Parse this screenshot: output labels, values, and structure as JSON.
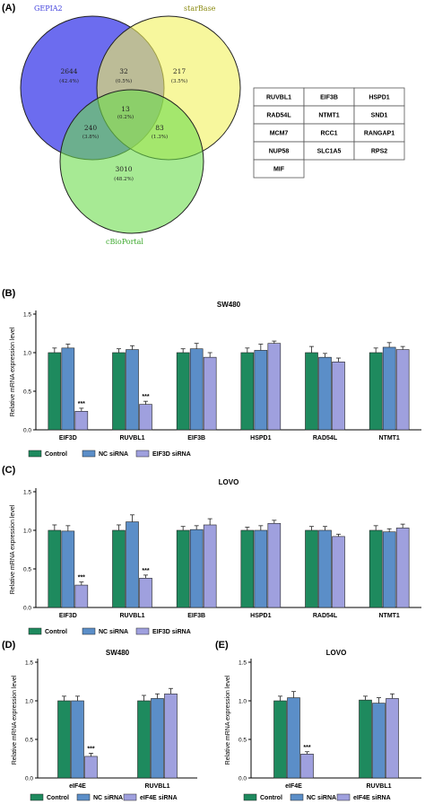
{
  "panels": {
    "A": "(A)",
    "B": "(B)",
    "C": "(C)",
    "D": "(D)",
    "E": "(E)"
  },
  "venn": {
    "sets": [
      "GEPIA2",
      "starBase",
      "cBioPortal"
    ],
    "colors": {
      "GEPIA2": "#6464ee",
      "starBase": "#f2f25c",
      "cBioPortal": "#6cdc4c"
    },
    "regions": [
      {
        "id": "gepia-only",
        "count": "2644",
        "pct": "(42.4%)"
      },
      {
        "id": "gepia-starbase",
        "count": "32",
        "pct": "(0.5%)"
      },
      {
        "id": "starbase-only",
        "count": "217",
        "pct": "(3.5%)"
      },
      {
        "id": "all-three",
        "count": "13",
        "pct": "(0.2%)"
      },
      {
        "id": "gepia-cbio",
        "count": "240",
        "pct": "(3.8%)"
      },
      {
        "id": "starbase-cbio",
        "count": "83",
        "pct": "(1.3%)"
      },
      {
        "id": "cbio-only",
        "count": "3010",
        "pct": "(48.2%)"
      }
    ]
  },
  "gene_table": [
    [
      "RUVBL1",
      "EIF3B",
      "HSPD1"
    ],
    [
      "RAD54L",
      "NTMT1",
      "SND1"
    ],
    [
      "MCM7",
      "RCC1",
      "RANGAP1"
    ],
    [
      "NUP58",
      "SLC1A5",
      "RPS2"
    ],
    [
      "MIF",
      "",
      ""
    ]
  ],
  "chart_data": [
    {
      "panel": "B",
      "type": "bar",
      "title": "SW480",
      "ylabel": "Relative mRNA expression level",
      "ylim": [
        0,
        1.5
      ],
      "yticks": [
        "0.0",
        "0.5",
        "1.0",
        "1.5"
      ],
      "categories": [
        "EIF3D",
        "RUVBL1",
        "EIF3B",
        "HSPD1",
        "RAD54L",
        "NTMT1"
      ],
      "series": [
        {
          "name": "Control",
          "color": "#1e8a5e",
          "values": [
            1.0,
            1.0,
            1.0,
            1.0,
            1.0,
            1.0
          ],
          "errors": [
            0.06,
            0.05,
            0.05,
            0.06,
            0.08,
            0.06
          ]
        },
        {
          "name": "NC siRNA",
          "color": "#5b8ec8",
          "values": [
            1.06,
            1.04,
            1.05,
            1.03,
            0.94,
            1.07
          ],
          "errors": [
            0.05,
            0.05,
            0.07,
            0.08,
            0.05,
            0.06
          ]
        },
        {
          "name": "EIF3D siRNA",
          "color": "#9fa0de",
          "values": [
            0.24,
            0.33,
            0.94,
            1.12,
            0.88,
            1.04
          ],
          "errors": [
            0.04,
            0.04,
            0.06,
            0.03,
            0.05,
            0.04
          ]
        }
      ],
      "annotations": [
        {
          "category": "EIF3D",
          "series": 2,
          "text": "***"
        },
        {
          "category": "RUVBL1",
          "series": 2,
          "text": "***"
        }
      ]
    },
    {
      "panel": "C",
      "type": "bar",
      "title": "LOVO",
      "ylabel": "Relative mRNA expression level",
      "ylim": [
        0,
        1.5
      ],
      "yticks": [
        "0.0",
        "0.5",
        "1.0",
        "1.5"
      ],
      "categories": [
        "EIF3D",
        "RUVBL1",
        "EIF3B",
        "HSPD1",
        "RAD54L",
        "NTMT1"
      ],
      "series": [
        {
          "name": "Control",
          "color": "#1e8a5e",
          "values": [
            1.0,
            1.0,
            1.0,
            1.0,
            1.0,
            1.0
          ],
          "errors": [
            0.07,
            0.07,
            0.05,
            0.04,
            0.05,
            0.06
          ]
        },
        {
          "name": "NC siRNA",
          "color": "#5b8ec8",
          "values": [
            0.99,
            1.11,
            1.01,
            1.0,
            1.0,
            0.98
          ],
          "errors": [
            0.07,
            0.09,
            0.05,
            0.06,
            0.05,
            0.04
          ]
        },
        {
          "name": "EIF3D siRNA",
          "color": "#9fa0de",
          "values": [
            0.29,
            0.38,
            1.07,
            1.09,
            0.92,
            1.03
          ],
          "errors": [
            0.04,
            0.04,
            0.08,
            0.04,
            0.03,
            0.05
          ]
        }
      ],
      "annotations": [
        {
          "category": "EIF3D",
          "series": 2,
          "text": "***"
        },
        {
          "category": "RUVBL1",
          "series": 2,
          "text": "***"
        }
      ]
    },
    {
      "panel": "D",
      "type": "bar",
      "title": "SW480",
      "ylabel": "Relative mRNA expression level",
      "ylim": [
        0,
        1.5
      ],
      "yticks": [
        "0.0",
        "0.5",
        "1.0",
        "1.5"
      ],
      "categories": [
        "eIF4E",
        "RUVBL1"
      ],
      "series": [
        {
          "name": "Control",
          "color": "#1e8a5e",
          "values": [
            1.0,
            1.0
          ],
          "errors": [
            0.06,
            0.07
          ]
        },
        {
          "name": "NC siRNA",
          "color": "#5b8ec8",
          "values": [
            1.0,
            1.03
          ],
          "errors": [
            0.06,
            0.06
          ]
        },
        {
          "name": "eIF4E siRNA",
          "color": "#9fa0de",
          "values": [
            0.28,
            1.09
          ],
          "errors": [
            0.04,
            0.07
          ]
        }
      ],
      "annotations": [
        {
          "category": "eIF4E",
          "series": 2,
          "text": "***"
        }
      ]
    },
    {
      "panel": "E",
      "type": "bar",
      "title": "LOVO",
      "ylabel": "Relative mRNA expression level",
      "ylim": [
        0,
        1.5
      ],
      "yticks": [
        "0.0",
        "0.5",
        "1.0",
        "1.5"
      ],
      "categories": [
        "eIF4E",
        "RUVBL1"
      ],
      "series": [
        {
          "name": "Control",
          "color": "#1e8a5e",
          "values": [
            1.0,
            1.01
          ],
          "errors": [
            0.06,
            0.05
          ]
        },
        {
          "name": "NC siRNA",
          "color": "#5b8ec8",
          "values": [
            1.04,
            0.97
          ],
          "errors": [
            0.08,
            0.07
          ]
        },
        {
          "name": "eIF4E siRNA",
          "color": "#9fa0de",
          "values": [
            0.31,
            1.03
          ],
          "errors": [
            0.03,
            0.06
          ]
        }
      ],
      "annotations": [
        {
          "category": "eIF4E",
          "series": 2,
          "text": "***"
        }
      ]
    }
  ]
}
